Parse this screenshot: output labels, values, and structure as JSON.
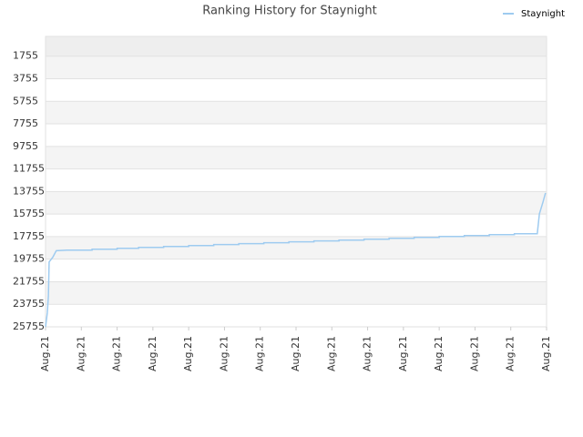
{
  "chart_data": {
    "type": "line",
    "title": "Ranking History for Staynight",
    "x": [
      0,
      0.05,
      0.08,
      0.1,
      0.2,
      0.3,
      0.6,
      1.3,
      1.3,
      2.0,
      2.0,
      2.6,
      2.6,
      3.3,
      3.3,
      4.0,
      4.0,
      4.7,
      4.7,
      5.4,
      5.4,
      6.1,
      6.1,
      6.8,
      6.8,
      7.5,
      7.5,
      8.2,
      8.2,
      8.9,
      8.9,
      9.6,
      9.6,
      10.3,
      10.3,
      11.0,
      11.0,
      11.7,
      11.7,
      12.4,
      12.4,
      13.1,
      13.1,
      13.74,
      13.8,
      13.9,
      13.97
    ],
    "series": [
      {
        "name": "Staynight",
        "color": "#9ecbf0",
        "values": [
          25755,
          24500,
          23000,
          20000,
          19600,
          19000,
          18950,
          18950,
          18870,
          18870,
          18790,
          18790,
          18710,
          18710,
          18630,
          18630,
          18550,
          18550,
          18460,
          18460,
          18380,
          18380,
          18300,
          18300,
          18220,
          18220,
          18140,
          18140,
          18060,
          18060,
          17980,
          17980,
          17900,
          17900,
          17820,
          17820,
          17740,
          17740,
          17660,
          17660,
          17580,
          17580,
          17500,
          17500,
          15740,
          14690,
          13880
        ]
      }
    ],
    "xlim": [
      0,
      14
    ],
    "xticks": [
      {
        "value": 0,
        "label": "Aug.21"
      },
      {
        "value": 1,
        "label": "Aug.21"
      },
      {
        "value": 2,
        "label": "Aug.21"
      },
      {
        "value": 3,
        "label": "Aug.21"
      },
      {
        "value": 4,
        "label": "Aug.21"
      },
      {
        "value": 5,
        "label": "Aug.21"
      },
      {
        "value": 6,
        "label": "Aug.21"
      },
      {
        "value": 7,
        "label": "Aug.21"
      },
      {
        "value": 8,
        "label": "Aug.21"
      },
      {
        "value": 9,
        "label": "Aug.21"
      },
      {
        "value": 10,
        "label": "Aug.21"
      },
      {
        "value": 11,
        "label": "Aug.21"
      },
      {
        "value": 12,
        "label": "Aug.21"
      },
      {
        "value": 13,
        "label": "Aug.21"
      },
      {
        "value": 14,
        "label": "Aug.21"
      }
    ],
    "ylim": [
      25755,
      0
    ],
    "yticks": [
      1755,
      3755,
      5755,
      7755,
      9755,
      11755,
      13755,
      15755,
      17755,
      19755,
      21755,
      23755,
      25755
    ],
    "grid": true,
    "legend": "top-right"
  }
}
